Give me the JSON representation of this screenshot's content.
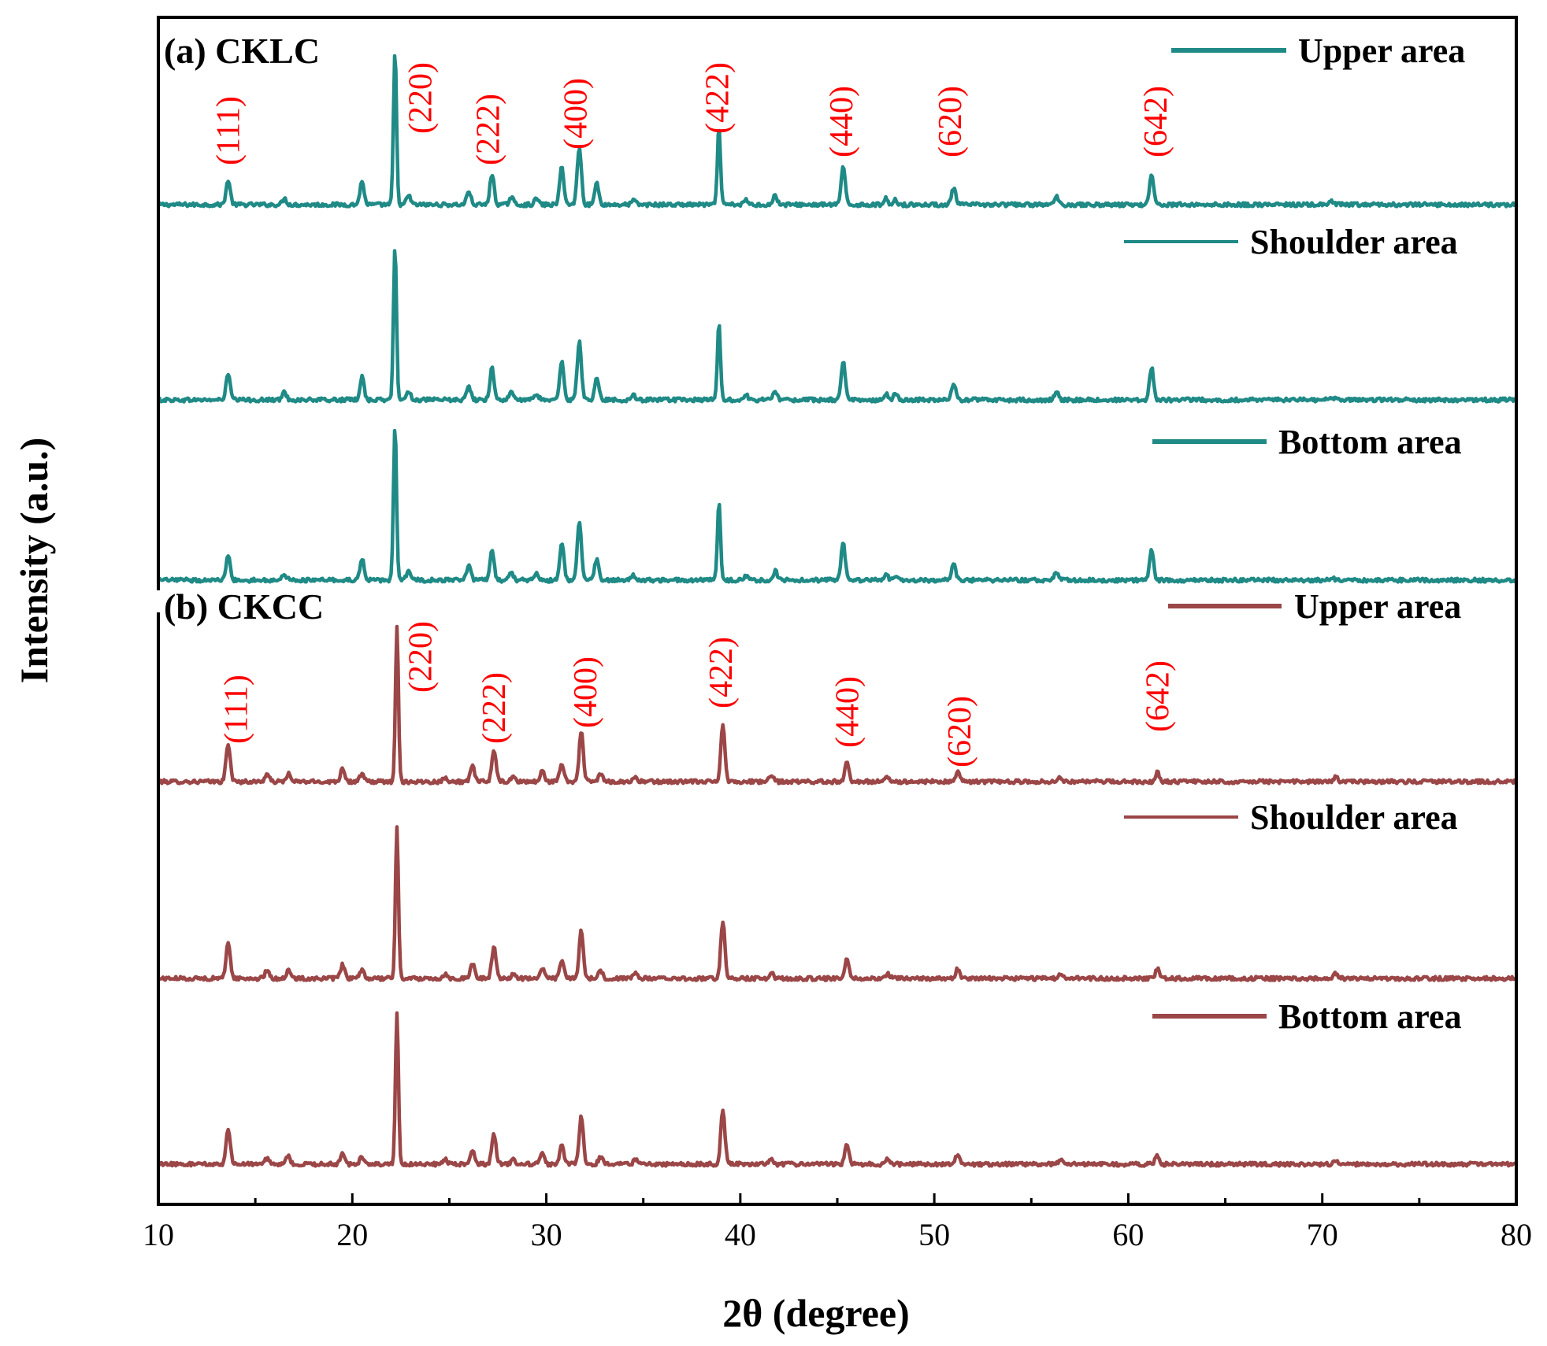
{
  "chart_data": {
    "type": "line",
    "xlabel": "2θ (degree)",
    "ylabel": "Intensity (a.u.)",
    "xlim": [
      10,
      80
    ],
    "x_ticks": [
      10,
      20,
      30,
      40,
      50,
      60,
      70,
      80
    ],
    "x_tick_labels": [
      "10",
      "20",
      "30",
      "40",
      "50",
      "60",
      "70",
      "80"
    ],
    "grid": false,
    "panels": [
      {
        "label": "(a) CKLC",
        "color": "#1f8a86",
        "miller_indices": [
          {
            "hkl": "(111)",
            "two_theta": 13.6
          },
          {
            "hkl": "(220)",
            "two_theta": 23.5
          },
          {
            "hkl": "(222)",
            "two_theta": 27.0
          },
          {
            "hkl": "(400)",
            "two_theta": 31.5
          },
          {
            "hkl": "(422)",
            "two_theta": 38.8
          },
          {
            "hkl": "(440)",
            "two_theta": 45.2
          },
          {
            "hkl": "(620)",
            "two_theta": 50.8
          },
          {
            "hkl": "(642)",
            "two_theta": 61.4
          }
        ],
        "series": [
          {
            "name": "Upper area",
            "peaks": [
              [
                13.6,
                0.16
              ],
              [
                16.5,
                0.04
              ],
              [
                20.5,
                0.15
              ],
              [
                22.2,
                1.0
              ],
              [
                22.9,
                0.06
              ],
              [
                26.0,
                0.09
              ],
              [
                27.2,
                0.2
              ],
              [
                28.2,
                0.05
              ],
              [
                29.5,
                0.04
              ],
              [
                30.8,
                0.25
              ],
              [
                31.7,
                0.38
              ],
              [
                32.6,
                0.14
              ],
              [
                34.5,
                0.03
              ],
              [
                38.9,
                0.51
              ],
              [
                40.3,
                0.03
              ],
              [
                41.8,
                0.06
              ],
              [
                45.3,
                0.24
              ],
              [
                47.5,
                0.04
              ],
              [
                48.0,
                0.03
              ],
              [
                51.0,
                0.11
              ],
              [
                56.3,
                0.05
              ],
              [
                61.2,
                0.2
              ],
              [
                70.5,
                0.02
              ]
            ]
          },
          {
            "name": "Shoulder area",
            "peaks": [
              [
                13.6,
                0.17
              ],
              [
                16.5,
                0.05
              ],
              [
                20.5,
                0.15
              ],
              [
                22.2,
                1.0
              ],
              [
                22.9,
                0.06
              ],
              [
                26.0,
                0.09
              ],
              [
                27.2,
                0.21
              ],
              [
                28.2,
                0.05
              ],
              [
                29.5,
                0.04
              ],
              [
                30.8,
                0.25
              ],
              [
                31.7,
                0.38
              ],
              [
                32.6,
                0.15
              ],
              [
                34.5,
                0.03
              ],
              [
                38.9,
                0.51
              ],
              [
                40.3,
                0.03
              ],
              [
                41.8,
                0.06
              ],
              [
                45.3,
                0.25
              ],
              [
                47.5,
                0.04
              ],
              [
                48.0,
                0.04
              ],
              [
                51.0,
                0.11
              ],
              [
                56.3,
                0.05
              ],
              [
                61.2,
                0.21
              ],
              [
                70.5,
                0.02
              ]
            ]
          },
          {
            "name": "Bottom area",
            "peaks": [
              [
                13.6,
                0.16
              ],
              [
                16.5,
                0.04
              ],
              [
                20.5,
                0.14
              ],
              [
                22.2,
                1.0
              ],
              [
                22.9,
                0.06
              ],
              [
                26.0,
                0.09
              ],
              [
                27.2,
                0.2
              ],
              [
                28.2,
                0.05
              ],
              [
                29.5,
                0.04
              ],
              [
                30.8,
                0.25
              ],
              [
                31.7,
                0.38
              ],
              [
                32.6,
                0.14
              ],
              [
                34.5,
                0.03
              ],
              [
                38.9,
                0.52
              ],
              [
                40.3,
                0.03
              ],
              [
                41.8,
                0.06
              ],
              [
                45.3,
                0.24
              ],
              [
                47.5,
                0.04
              ],
              [
                48.0,
                0.03
              ],
              [
                51.0,
                0.11
              ],
              [
                56.3,
                0.05
              ],
              [
                61.2,
                0.19
              ],
              [
                70.5,
                0.02
              ]
            ]
          }
        ]
      },
      {
        "label": "(b) CKCC",
        "color": "#9b4647",
        "miller_indices": [
          {
            "hkl": "(111)",
            "two_theta": 14.0
          },
          {
            "hkl": "(220)",
            "two_theta": 23.5
          },
          {
            "hkl": "(222)",
            "two_theta": 27.3
          },
          {
            "hkl": "(400)",
            "two_theta": 32.0
          },
          {
            "hkl": "(422)",
            "two_theta": 39.0
          },
          {
            "hkl": "(440)",
            "two_theta": 45.5
          },
          {
            "hkl": "(620)",
            "two_theta": 51.3
          },
          {
            "hkl": "(642)",
            "two_theta": 61.5
          }
        ],
        "series": [
          {
            "name": "Upper area",
            "peaks": [
              [
                13.6,
                0.25
              ],
              [
                15.6,
                0.05
              ],
              [
                16.7,
                0.05
              ],
              [
                19.5,
                0.09
              ],
              [
                20.5,
                0.05
              ],
              [
                22.3,
                1.0
              ],
              [
                24.8,
                0.03
              ],
              [
                26.2,
                0.1
              ],
              [
                27.3,
                0.21
              ],
              [
                28.3,
                0.03
              ],
              [
                29.8,
                0.07
              ],
              [
                30.8,
                0.12
              ],
              [
                31.8,
                0.33
              ],
              [
                32.8,
                0.05
              ],
              [
                34.6,
                0.03
              ],
              [
                39.1,
                0.37
              ],
              [
                41.6,
                0.04
              ],
              [
                45.5,
                0.13
              ],
              [
                47.6,
                0.03
              ],
              [
                51.2,
                0.06
              ],
              [
                56.5,
                0.03
              ],
              [
                61.5,
                0.06
              ],
              [
                70.7,
                0.03
              ]
            ]
          },
          {
            "name": "Shoulder area",
            "peaks": [
              [
                13.6,
                0.24
              ],
              [
                15.6,
                0.05
              ],
              [
                16.7,
                0.05
              ],
              [
                19.5,
                0.09
              ],
              [
                20.5,
                0.05
              ],
              [
                22.3,
                0.98
              ],
              [
                24.8,
                0.03
              ],
              [
                26.2,
                0.1
              ],
              [
                27.3,
                0.21
              ],
              [
                28.3,
                0.03
              ],
              [
                29.8,
                0.07
              ],
              [
                30.8,
                0.12
              ],
              [
                31.8,
                0.32
              ],
              [
                32.8,
                0.05
              ],
              [
                34.6,
                0.03
              ],
              [
                39.1,
                0.37
              ],
              [
                41.6,
                0.04
              ],
              [
                45.5,
                0.13
              ],
              [
                47.6,
                0.03
              ],
              [
                51.2,
                0.06
              ],
              [
                56.5,
                0.03
              ],
              [
                61.5,
                0.06
              ],
              [
                70.7,
                0.03
              ]
            ]
          },
          {
            "name": "Bottom area",
            "peaks": [
              [
                13.6,
                0.23
              ],
              [
                15.6,
                0.04
              ],
              [
                16.7,
                0.05
              ],
              [
                19.5,
                0.08
              ],
              [
                20.5,
                0.05
              ],
              [
                22.3,
                0.98
              ],
              [
                24.8,
                0.03
              ],
              [
                26.2,
                0.09
              ],
              [
                27.3,
                0.2
              ],
              [
                28.3,
                0.03
              ],
              [
                29.8,
                0.07
              ],
              [
                30.8,
                0.12
              ],
              [
                31.8,
                0.31
              ],
              [
                32.8,
                0.05
              ],
              [
                34.6,
                0.03
              ],
              [
                39.1,
                0.36
              ],
              [
                41.6,
                0.04
              ],
              [
                45.5,
                0.13
              ],
              [
                47.6,
                0.03
              ],
              [
                51.2,
                0.06
              ],
              [
                56.5,
                0.03
              ],
              [
                61.5,
                0.06
              ],
              [
                70.7,
                0.03
              ]
            ]
          }
        ]
      }
    ]
  }
}
